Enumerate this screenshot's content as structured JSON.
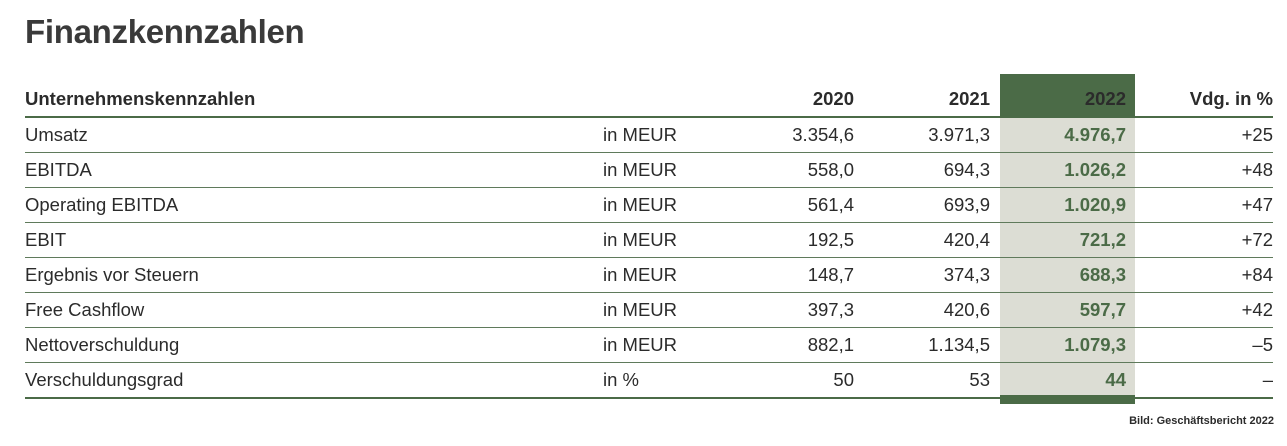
{
  "title": "Finanzkennzahlen",
  "colors": {
    "accent": "#4b6b47",
    "highlight_bg": "#dcddd4"
  },
  "table": {
    "headers": {
      "label": "Unternehmenskennzahlen",
      "unit": "",
      "y2020": "2020",
      "y2021": "2021",
      "y2022": "2022",
      "change": "Vdg. in %"
    },
    "rows": [
      {
        "label": "Umsatz",
        "unit": "in MEUR",
        "y2020": "3.354,6",
        "y2021": "3.971,3",
        "y2022": "4.976,7",
        "change": "+25"
      },
      {
        "label": "EBITDA",
        "unit": "in MEUR",
        "y2020": "558,0",
        "y2021": "694,3",
        "y2022": "1.026,2",
        "change": "+48"
      },
      {
        "label": "Operating EBITDA",
        "unit": "in MEUR",
        "y2020": "561,4",
        "y2021": "693,9",
        "y2022": "1.020,9",
        "change": "+47"
      },
      {
        "label": "EBIT",
        "unit": "in MEUR",
        "y2020": "192,5",
        "y2021": "420,4",
        "y2022": "721,2",
        "change": "+72"
      },
      {
        "label": "Ergebnis vor Steuern",
        "unit": "in MEUR",
        "y2020": "148,7",
        "y2021": "374,3",
        "y2022": "688,3",
        "change": "+84"
      },
      {
        "label": "Free Cashflow",
        "unit": "in MEUR",
        "y2020": "397,3",
        "y2021": "420,6",
        "y2022": "597,7",
        "change": "+42"
      },
      {
        "label": "Nettoverschuldung",
        "unit": "in MEUR",
        "y2020": "882,1",
        "y2021": "1.134,5",
        "y2022": "1.079,3",
        "change": "–5"
      },
      {
        "label": "Verschuldungsgrad",
        "unit": "in %",
        "y2020": "50",
        "y2021": "53",
        "y2022": "44",
        "change": "–"
      }
    ]
  },
  "source": "Bild: Geschäftsbericht 2022"
}
